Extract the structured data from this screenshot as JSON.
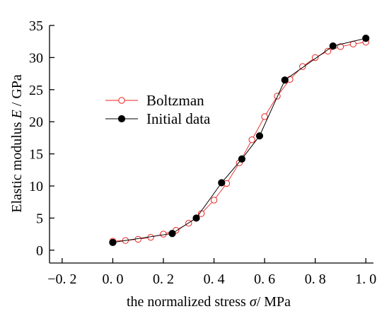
{
  "chart_data": {
    "type": "line",
    "xlabel": {
      "prefix": "the normalized stress ",
      "symbol": "σ",
      "suffix": "/ MPa"
    },
    "ylabel": {
      "prefix": "Elastic modulus ",
      "symbol": "E",
      "suffix": " / GPa"
    },
    "xlim": [
      -0.25,
      1.03
    ],
    "ylim": [
      -2,
      35
    ],
    "x_ticks": [
      -0.2,
      0.0,
      0.2,
      0.4,
      0.6,
      0.8,
      1.0
    ],
    "x_tick_labels": [
      "−0. 2",
      "0. 0",
      "0. 2",
      "0. 4",
      "0. 6",
      "0. 8",
      "1. 0"
    ],
    "y_ticks": [
      0,
      5,
      10,
      15,
      20,
      25,
      30,
      35
    ],
    "y_tick_labels": [
      "0",
      "5",
      "10",
      "15",
      "20",
      "25",
      "30",
      "35"
    ],
    "grid": false,
    "legend_position": "upper-left",
    "series": [
      {
        "name": "Boltzman",
        "color": "#e8241f",
        "marker": "open-circle",
        "x": [
          0.0,
          0.05,
          0.1,
          0.15,
          0.2,
          0.25,
          0.3,
          0.35,
          0.4,
          0.45,
          0.5,
          0.55,
          0.6,
          0.65,
          0.7,
          0.75,
          0.8,
          0.85,
          0.9,
          0.95,
          1.0
        ],
        "y": [
          1.4,
          1.5,
          1.7,
          2.0,
          2.5,
          3.1,
          4.2,
          5.7,
          7.8,
          10.4,
          13.6,
          17.2,
          20.8,
          24.0,
          26.6,
          28.6,
          30.0,
          31.0,
          31.7,
          32.1,
          32.4
        ]
      },
      {
        "name": "Initial data",
        "color": "#000000",
        "marker": "filled-circle",
        "x": [
          0.0,
          0.235,
          0.33,
          0.43,
          0.51,
          0.58,
          0.68,
          0.87,
          1.0
        ],
        "y": [
          1.2,
          2.6,
          5.0,
          10.5,
          14.2,
          17.8,
          26.5,
          31.8,
          33.0
        ]
      }
    ]
  }
}
